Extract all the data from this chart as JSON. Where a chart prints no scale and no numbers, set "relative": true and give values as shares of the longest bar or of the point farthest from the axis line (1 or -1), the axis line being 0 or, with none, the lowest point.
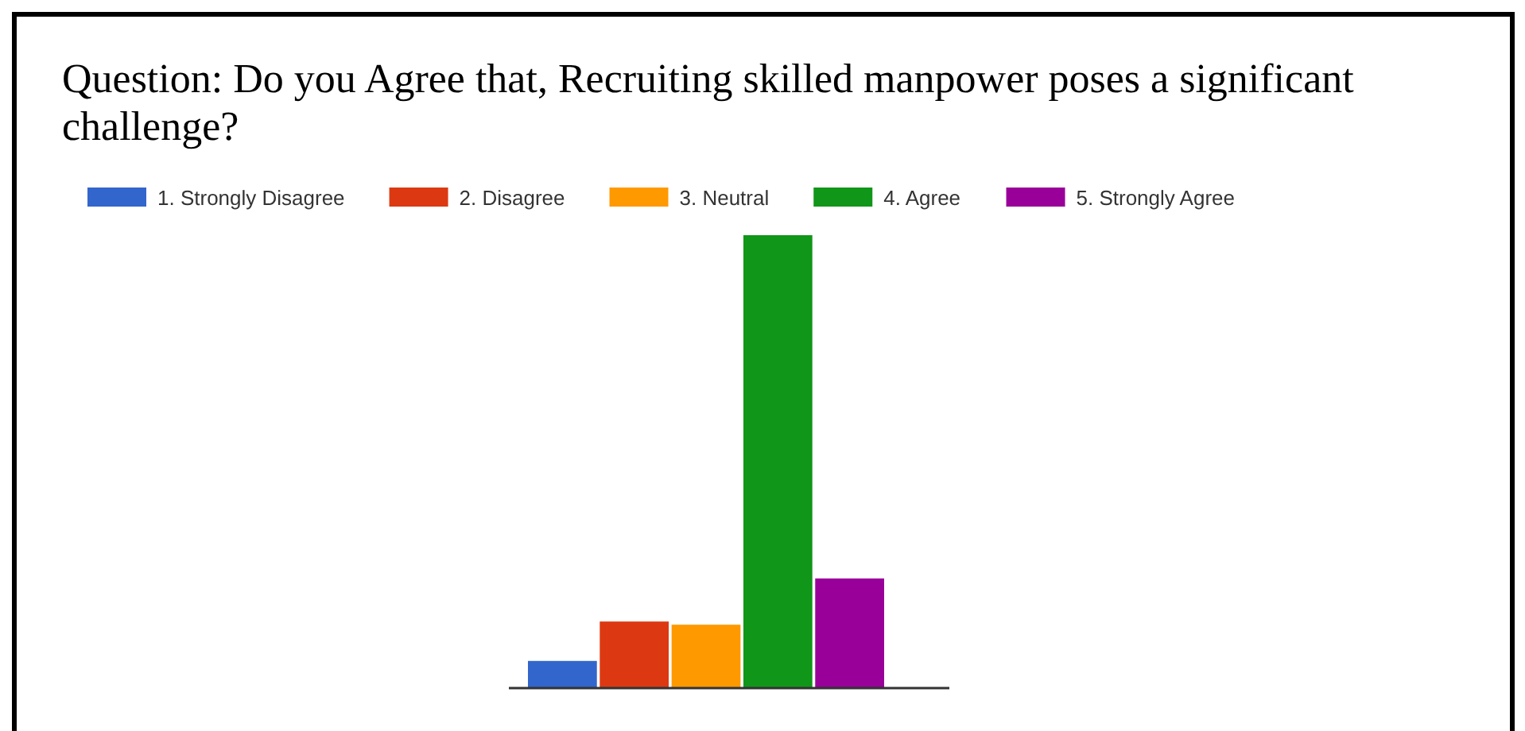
{
  "chart_data": {
    "type": "bar",
    "title": "Question: Do you Agree that, Recruiting skilled manpower poses a significant challenge?",
    "categories": [
      null
    ],
    "series": [
      {
        "name": "1. Strongly Disagree",
        "color": "#3366cc",
        "values": [
          0.06
        ]
      },
      {
        "name": "2. Disagree",
        "color": "#dc3912",
        "values": [
          0.147
        ]
      },
      {
        "name": "3. Neutral",
        "color": "#ff9900",
        "values": [
          0.14
        ]
      },
      {
        "name": "4. Agree",
        "color": "#109618",
        "values": [
          1
        ]
      },
      {
        "name": "5. Strongly Agree",
        "color": "#990099",
        "values": [
          0.242
        ]
      }
    ],
    "relative": true,
    "legend": "top"
  }
}
